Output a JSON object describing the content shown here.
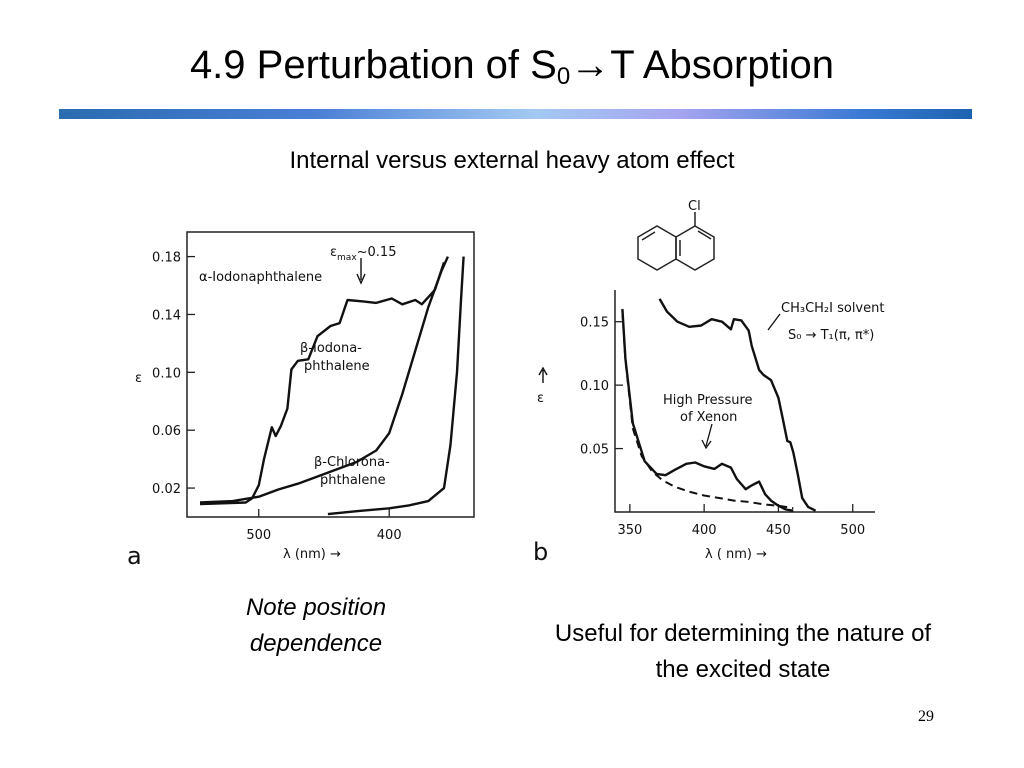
{
  "slide": {
    "title_main": "4.9 Perturbation of S",
    "title_sub": "0",
    "title_arrow": "→",
    "title_end": "T Absorption",
    "subtitle": "Internal versus external heavy atom effect",
    "note_left": "Note position dependence",
    "note_right": "Useful for determining the nature of the excited state",
    "page_number": "29"
  },
  "colors": {
    "title_bar_start": "#2a6cb1",
    "title_bar_mid": "#a3c9f2",
    "title_bar_end": "#1c63b0"
  },
  "chart_data": [
    {
      "type": "line",
      "panel_label": "a",
      "xlabel": "λ (nm) →",
      "ylabel": "ε",
      "x_ticks": [
        500,
        400
      ],
      "y_ticks": [
        "0.18",
        "0.14",
        "0.10",
        "0.06",
        "0.02"
      ],
      "y_tick_values": [
        0.18,
        0.14,
        0.1,
        0.06,
        0.02
      ],
      "xlim": [
        555,
        335
      ],
      "ylim": [
        0.0,
        0.197
      ],
      "annotation": {
        "text_main": "ε",
        "text_sub": "max",
        "text_end": "~0.15"
      },
      "series": [
        {
          "name": "α-Iodonaphthalene",
          "x": [
            545,
            510,
            505,
            500,
            496,
            490,
            487,
            483,
            478,
            475,
            470,
            462,
            455,
            445,
            438,
            432,
            420,
            410,
            398,
            390,
            380,
            375,
            365,
            358
          ],
          "y": [
            0.009,
            0.01,
            0.013,
            0.022,
            0.04,
            0.062,
            0.056,
            0.063,
            0.075,
            0.102,
            0.108,
            0.109,
            0.125,
            0.132,
            0.134,
            0.15,
            0.149,
            0.148,
            0.151,
            0.147,
            0.15,
            0.147,
            0.157,
            0.176
          ]
        },
        {
          "name": "β-Iodonaphthalene",
          "label_lines": [
            "β-Iodona-",
            "phthalene"
          ],
          "x": [
            545,
            520,
            500,
            485,
            470,
            455,
            440,
            425,
            410,
            400,
            390,
            380,
            370,
            360,
            355
          ],
          "y": [
            0.01,
            0.011,
            0.014,
            0.019,
            0.023,
            0.028,
            0.033,
            0.038,
            0.046,
            0.058,
            0.085,
            0.115,
            0.145,
            0.17,
            0.18
          ]
        },
        {
          "name": "β-Chloronaphthalene",
          "label_lines": [
            "β-Chlorona-",
            "phthalene"
          ],
          "x": [
            447,
            425,
            400,
            385,
            370,
            358,
            353,
            348,
            345,
            343
          ],
          "y": [
            0.002,
            0.004,
            0.006,
            0.008,
            0.011,
            0.02,
            0.05,
            0.1,
            0.15,
            0.18
          ]
        }
      ]
    },
    {
      "type": "line",
      "panel_label": "b",
      "xlabel": "λ ( nm) →",
      "ylabel": "ε",
      "x_ticks": [
        350,
        400,
        450,
        500
      ],
      "y_ticks": [
        "0.15",
        "0.10",
        "0.05"
      ],
      "y_tick_values": [
        0.15,
        0.1,
        0.05
      ],
      "xlim": [
        340,
        515
      ],
      "ylim": [
        0.0,
        0.175
      ],
      "structure_label": "Cl",
      "series": [
        {
          "name": "CH3CH2I solvent",
          "label_lines": [
            "CH₃CH₂I  solvent",
            "S₀ → T₁(π, π*)"
          ],
          "x": [
            370,
            375,
            382,
            390,
            398,
            405,
            412,
            418,
            420,
            425,
            430,
            432,
            437,
            440,
            445,
            450,
            453,
            456,
            458,
            460,
            463,
            466,
            470,
            475
          ],
          "y": [
            0.168,
            0.158,
            0.15,
            0.146,
            0.147,
            0.152,
            0.15,
            0.144,
            0.152,
            0.151,
            0.143,
            0.131,
            0.112,
            0.108,
            0.104,
            0.09,
            0.073,
            0.056,
            0.055,
            0.047,
            0.03,
            0.011,
            0.004,
            0.001
          ]
        },
        {
          "name": "High Pressure of Xenon",
          "label_lines": [
            "High Pressure",
            "of  Xenon"
          ],
          "x": [
            345,
            347,
            352,
            360,
            368,
            374,
            380,
            388,
            394,
            400,
            407,
            412,
            418,
            422,
            428,
            432,
            437,
            441,
            445,
            450,
            455,
            460
          ],
          "y": [
            0.16,
            0.121,
            0.07,
            0.04,
            0.03,
            0.029,
            0.033,
            0.038,
            0.039,
            0.036,
            0.034,
            0.038,
            0.035,
            0.026,
            0.018,
            0.021,
            0.024,
            0.014,
            0.009,
            0.005,
            0.002,
            0.001
          ]
        },
        {
          "name": "Dashed reference",
          "style": "dashed",
          "x": [
            345,
            347,
            352,
            358,
            365,
            372,
            380,
            390,
            400,
            410,
            420,
            430,
            440,
            450,
            460
          ],
          "y": [
            0.158,
            0.12,
            0.066,
            0.044,
            0.032,
            0.025,
            0.02,
            0.016,
            0.013,
            0.011,
            0.009,
            0.008,
            0.006,
            0.005,
            0.003
          ]
        }
      ]
    }
  ]
}
